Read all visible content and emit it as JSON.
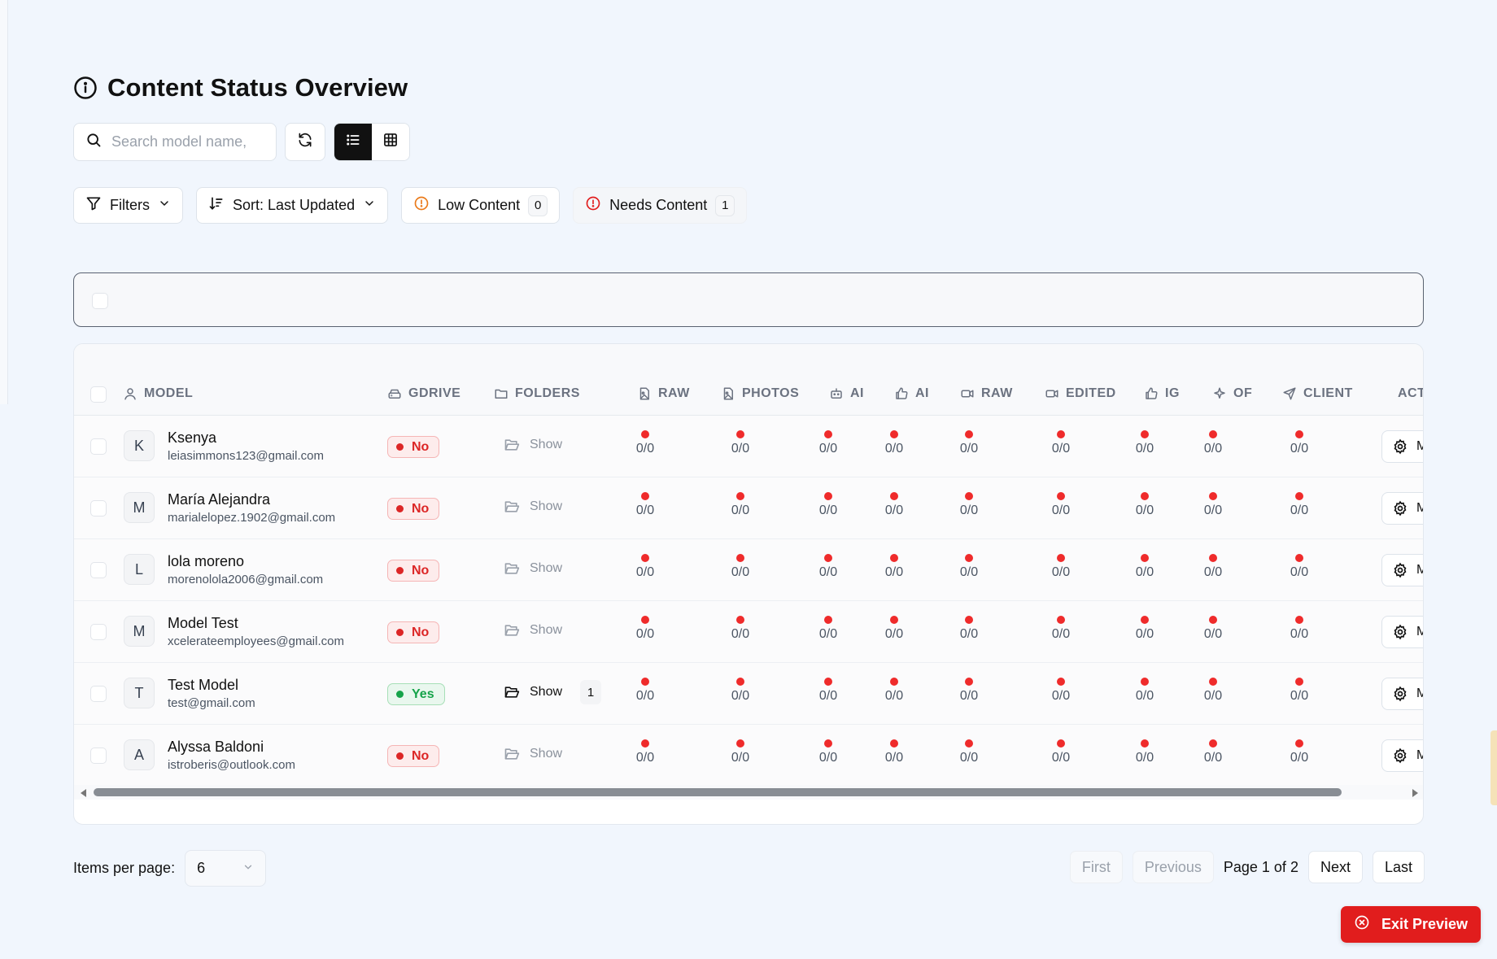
{
  "page": {
    "title": "Content Status Overview"
  },
  "search": {
    "placeholder": "Search model name,"
  },
  "filters": {
    "filters_label": "Filters",
    "sort_label": "Sort: Last Updated",
    "low_content_label": "Low Content",
    "low_content_count": "0",
    "needs_content_label": "Needs Content",
    "needs_content_count": "1"
  },
  "table": {
    "columns": [
      "MODEL",
      "GDRIVE",
      "FOLDERS",
      "RAW",
      "PHOTOS",
      "AI",
      "AI",
      "RAW",
      "EDITED",
      "IG",
      "OF",
      "CLIENT",
      "ACT"
    ],
    "folder_show_label": "Show",
    "rows": [
      {
        "initial": "K",
        "name": "Ksenya",
        "email": "leiasimmons123@gmail.com",
        "gdrive": "No",
        "folder_count": "",
        "stats": [
          "0/0",
          "0/0",
          "0/0",
          "0/0",
          "0/0",
          "0/0",
          "0/0",
          "0/0",
          "0/0"
        ],
        "action": "M"
      },
      {
        "initial": "M",
        "name": "María Alejandra",
        "email": "marialelopez.1902@gmail.com",
        "gdrive": "No",
        "folder_count": "",
        "stats": [
          "0/0",
          "0/0",
          "0/0",
          "0/0",
          "0/0",
          "0/0",
          "0/0",
          "0/0",
          "0/0"
        ],
        "action": "M"
      },
      {
        "initial": "L",
        "name": "lola moreno",
        "email": "morenolola2006@gmail.com",
        "gdrive": "No",
        "folder_count": "",
        "stats": [
          "0/0",
          "0/0",
          "0/0",
          "0/0",
          "0/0",
          "0/0",
          "0/0",
          "0/0",
          "0/0"
        ],
        "action": "M"
      },
      {
        "initial": "M",
        "name": "Model Test",
        "email": "xcelerateemployees@gmail.com",
        "gdrive": "No",
        "folder_count": "",
        "stats": [
          "0/0",
          "0/0",
          "0/0",
          "0/0",
          "0/0",
          "0/0",
          "0/0",
          "0/0",
          "0/0"
        ],
        "action": "M"
      },
      {
        "initial": "T",
        "name": "Test Model",
        "email": "test@gmail.com",
        "gdrive": "Yes",
        "folder_count": "1",
        "stats": [
          "0/0",
          "0/0",
          "0/0",
          "0/0",
          "0/0",
          "0/0",
          "0/0",
          "0/0",
          "0/0"
        ],
        "action": "M"
      },
      {
        "initial": "A",
        "name": "Alyssa Baldoni",
        "email": "istroberis@outlook.com",
        "gdrive": "No",
        "folder_count": "",
        "stats": [
          "0/0",
          "0/0",
          "0/0",
          "0/0",
          "0/0",
          "0/0",
          "0/0",
          "0/0",
          "0/0"
        ],
        "action": "M"
      }
    ]
  },
  "pagination": {
    "items_per_page_label": "Items per page:",
    "items_per_page_value": "6",
    "first_label": "First",
    "previous_label": "Previous",
    "page_info": "Page 1 of 2",
    "next_label": "Next",
    "last_label": "Last"
  },
  "exit_preview": {
    "label": "Exit Preview"
  },
  "colors": {
    "danger": "#e11d1d",
    "success": "#16a34a",
    "status_dot": "#ef2b2b",
    "background": "#f1f6fd"
  }
}
